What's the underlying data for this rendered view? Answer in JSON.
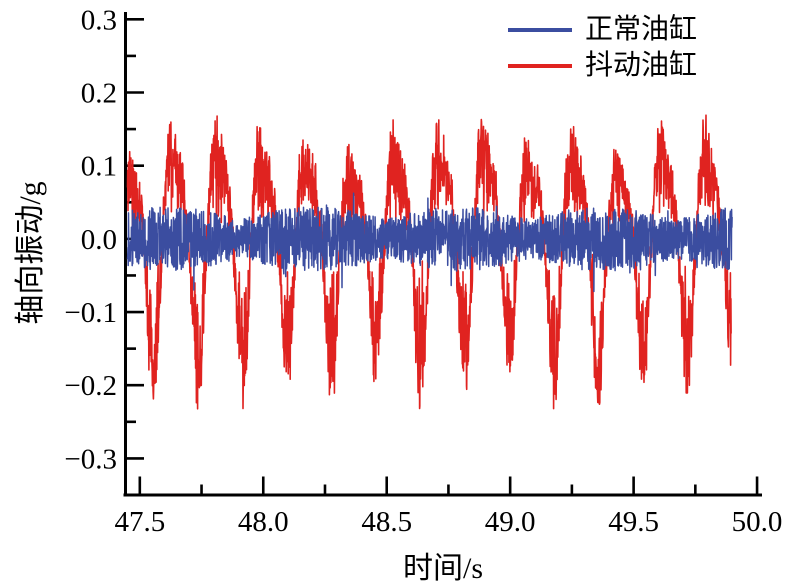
{
  "figure": {
    "background": "#ffffff",
    "axis_color": "#000000",
    "text_color": "#000000"
  },
  "chart_data": {
    "type": "line",
    "title": "",
    "xlabel": "时间/s",
    "ylabel": "轴向振动/g",
    "xlim": [
      47.44,
      50.02
    ],
    "ylim": [
      -0.35,
      0.31
    ],
    "x_ticks": [
      47.5,
      48.0,
      48.5,
      49.0,
      49.5,
      50.0
    ],
    "x_tick_labels": [
      "47.5",
      "48.0",
      "48.5",
      "49.0",
      "49.5",
      "50.0"
    ],
    "y_ticks": [
      0.3,
      0.2,
      0.1,
      0.0,
      -0.1,
      -0.2,
      -0.3
    ],
    "y_tick_labels": [
      "0.3",
      "0.2",
      "0.1",
      "0.0",
      "−0.1",
      "−0.2",
      "−0.3"
    ],
    "x_minor_step": 0.25,
    "y_minor_step": 0.05,
    "grid": false,
    "legend": {
      "position": "top-right",
      "frame": false,
      "entries": [
        {
          "label": "正常油缸",
          "color": "#3b4da0"
        },
        {
          "label": "抖动油缸",
          "color": "#e02320"
        }
      ]
    },
    "series": [
      {
        "name": "抖动油缸",
        "color": "#e02320",
        "kind": "modulated-burst-noise",
        "description": "periodic vibration bursts, ~5.55 Hz, peaks ±0.17 to ±0.25 g",
        "t_start": 47.45,
        "t_end": 49.895,
        "dt": 0.001,
        "burst_freq_hz": 5.55,
        "burst_peak_time": 47.462,
        "envelope_amp_min": 0.17,
        "envelope_amp_max": 0.25,
        "harmonic2": 0.3,
        "mod_floor": 0.22,
        "mod_power": 0.55,
        "baseline_noise": 0.05,
        "line_width": 1.6,
        "seed": 911
      },
      {
        "name": "正常油缸",
        "color": "#3b4da0",
        "kind": "band-noise",
        "description": "steady noise band around 0, mostly ±0.04 g, occasional ±0.07 g",
        "t_start": 47.45,
        "t_end": 49.9,
        "dt": 0.001,
        "base_amp": 0.044,
        "slow_mod_hz": 0.85,
        "slow_mod_floor": 0.6,
        "spike_prob": 0.02,
        "spike_gain": 1.75,
        "max_g": 0.075,
        "line_width": 1.5,
        "seed": 424242
      }
    ],
    "draw_order": [
      "抖动油缸",
      "正常油缸"
    ]
  }
}
